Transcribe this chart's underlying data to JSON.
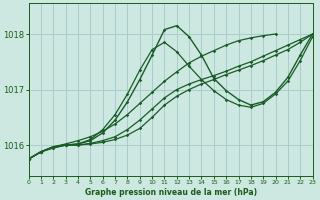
{
  "title": "Graphe pression niveau de la mer (hPa)",
  "bg_color": "#cce8e0",
  "grid_color": "#aacccc",
  "line_color": "#1a5c28",
  "text_color": "#1a5c1a",
  "xmin": 0,
  "xmax": 23,
  "ymin": 1015.45,
  "ymax": 1018.55,
  "yticks": [
    1016,
    1017,
    1018
  ],
  "xticks": [
    0,
    1,
    2,
    3,
    4,
    5,
    6,
    7,
    8,
    9,
    10,
    11,
    12,
    13,
    14,
    15,
    16,
    17,
    18,
    19,
    20,
    21,
    22,
    23
  ],
  "series": [
    {
      "x": [
        0,
        1,
        2,
        3,
        4,
        5,
        6,
        7,
        8,
        9,
        10,
        11,
        12,
        13,
        14,
        15,
        16,
        17,
        18,
        19,
        20
      ],
      "y": [
        1015.75,
        1015.88,
        1015.97,
        1016.02,
        1016.08,
        1016.15,
        1016.25,
        1016.38,
        1016.55,
        1016.75,
        1016.95,
        1017.15,
        1017.32,
        1017.48,
        1017.6,
        1017.7,
        1017.8,
        1017.88,
        1017.93,
        1017.97,
        1018.0
      ]
    },
    {
      "x": [
        0,
        1,
        2,
        3,
        4,
        5,
        6,
        7,
        8,
        9,
        10,
        11,
        12,
        13,
        14,
        15,
        16,
        17,
        18,
        19,
        20,
        21,
        22,
        23
      ],
      "y": [
        1015.75,
        1015.88,
        1015.97,
        1016.0,
        1016.0,
        1016.02,
        1016.05,
        1016.1,
        1016.18,
        1016.3,
        1016.5,
        1016.72,
        1016.88,
        1017.0,
        1017.1,
        1017.18,
        1017.27,
        1017.35,
        1017.43,
        1017.52,
        1017.62,
        1017.72,
        1017.85,
        1018.0
      ]
    },
    {
      "x": [
        0,
        1,
        2,
        3,
        4,
        5,
        6,
        7,
        8,
        9,
        10,
        11,
        12,
        13,
        14,
        15,
        16,
        17,
        18,
        19,
        20,
        21,
        22,
        23
      ],
      "y": [
        1015.75,
        1015.88,
        1015.97,
        1016.0,
        1016.0,
        1016.03,
        1016.08,
        1016.15,
        1016.28,
        1016.45,
        1016.65,
        1016.85,
        1017.0,
        1017.1,
        1017.18,
        1017.25,
        1017.33,
        1017.42,
        1017.5,
        1017.6,
        1017.7,
        1017.8,
        1017.9,
        1018.0
      ]
    },
    {
      "x": [
        0,
        1,
        2,
        3,
        4,
        5,
        6,
        7,
        8,
        9,
        10,
        11,
        12,
        13,
        14,
        15,
        16,
        17,
        18,
        19,
        20,
        21,
        22,
        23
      ],
      "y": [
        1015.75,
        1015.88,
        1015.95,
        1016.0,
        1016.02,
        1016.08,
        1016.22,
        1016.45,
        1016.78,
        1017.18,
        1017.62,
        1018.08,
        1018.15,
        1017.95,
        1017.62,
        1017.2,
        1016.98,
        1016.82,
        1016.72,
        1016.78,
        1016.95,
        1017.22,
        1017.62,
        1018.0
      ]
    },
    {
      "x": [
        0,
        1,
        2,
        3,
        4,
        5,
        6,
        7,
        8,
        9,
        10,
        11,
        12,
        13,
        14,
        15,
        16,
        17,
        18,
        19,
        20,
        21,
        22,
        23
      ],
      "y": [
        1015.75,
        1015.88,
        1015.95,
        1016.0,
        1016.02,
        1016.1,
        1016.28,
        1016.55,
        1016.92,
        1017.35,
        1017.72,
        1017.85,
        1017.68,
        1017.42,
        1017.18,
        1016.98,
        1016.82,
        1016.72,
        1016.68,
        1016.75,
        1016.92,
        1017.15,
        1017.52,
        1017.95
      ]
    }
  ]
}
